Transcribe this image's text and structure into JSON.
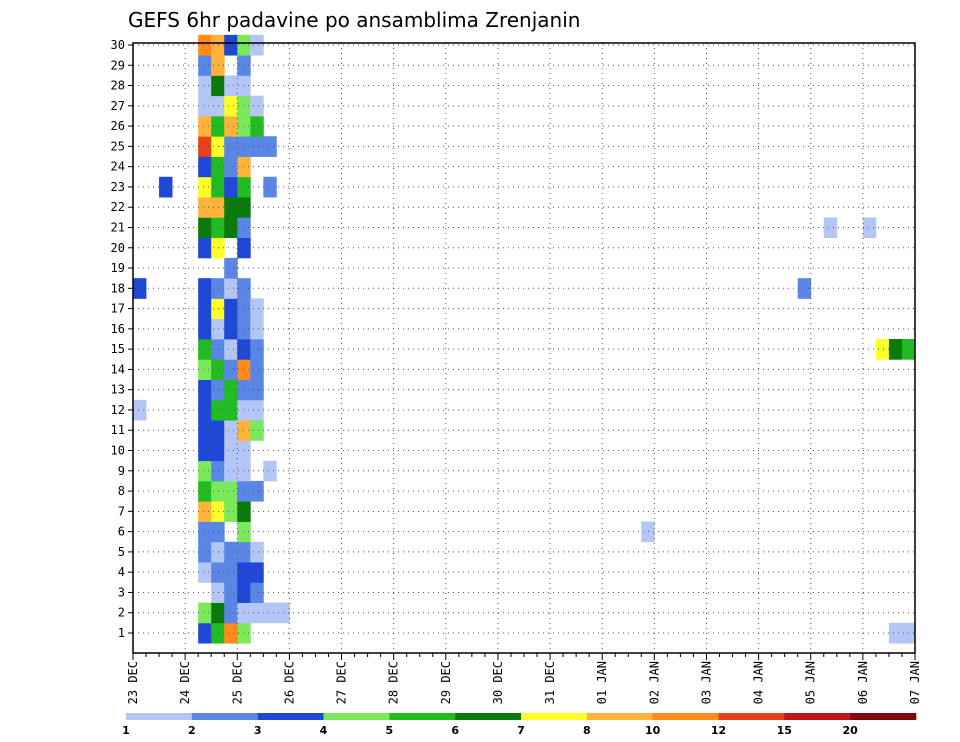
{
  "chart_data": {
    "type": "heatmap",
    "title": "GEFS 6hr padavine po ansamblima Zrenjanin",
    "xlabel": "",
    "ylabel": "",
    "x_start": "23 DEC 00Z",
    "x_step_hours": 6,
    "x_tick_labels": [
      "23 DEC",
      "24 DEC",
      "25 DEC",
      "26 DEC",
      "27 DEC",
      "28 DEC",
      "29 DEC",
      "30 DEC",
      "31 DEC",
      "01 JAN",
      "02 JAN",
      "03 JAN",
      "04 JAN",
      "05 JAN",
      "06 JAN",
      "07 JAN"
    ],
    "y_tick_labels": [
      "1",
      "2",
      "3",
      "4",
      "5",
      "6",
      "7",
      "8",
      "9",
      "10",
      "11",
      "12",
      "13",
      "14",
      "15",
      "16",
      "17",
      "18",
      "19",
      "20",
      "21",
      "22",
      "23",
      "24",
      "25",
      "26",
      "27",
      "28",
      "29",
      "30"
    ],
    "ylim": [
      1,
      30
    ],
    "grid": true,
    "colorbar": {
      "labels": [
        "1",
        "2",
        "3",
        "4",
        "5",
        "6",
        "7",
        "8",
        "10",
        "12",
        "15",
        "20"
      ],
      "colors": [
        "#b3c6f5",
        "#5a87e6",
        "#1f48d6",
        "#7ae85a",
        "#22bb22",
        "#0a7a0a",
        "#ffff2a",
        "#ffb33a",
        "#ff8c1a",
        "#e8401a",
        "#c01818",
        "#800a0a"
      ]
    },
    "series": [
      {
        "member": 1,
        "cells": [
          [
            5,
            3
          ],
          [
            6,
            5
          ],
          [
            7,
            9
          ],
          [
            8,
            4
          ],
          [
            58,
            1
          ],
          [
            59,
            1
          ],
          [
            67,
            1
          ],
          [
            68,
            3
          ]
        ]
      },
      {
        "member": 2,
        "cells": [
          [
            5,
            4
          ],
          [
            6,
            6
          ],
          [
            7,
            2
          ],
          [
            8,
            1
          ],
          [
            9,
            1
          ],
          [
            10,
            1
          ],
          [
            11,
            1
          ],
          [
            70,
            4
          ],
          [
            71,
            3
          ]
        ]
      },
      {
        "member": 3,
        "cells": [
          [
            6,
            1
          ],
          [
            7,
            2
          ],
          [
            8,
            3
          ],
          [
            9,
            2
          ]
        ]
      },
      {
        "member": 4,
        "cells": [
          [
            5,
            1
          ],
          [
            6,
            2
          ],
          [
            7,
            2
          ],
          [
            8,
            3
          ],
          [
            9,
            3
          ],
          [
            76,
            1
          ],
          [
            77,
            3
          ],
          [
            78,
            2
          ],
          [
            79,
            6
          ]
        ]
      },
      {
        "member": 5,
        "cells": [
          [
            5,
            2
          ],
          [
            6,
            1
          ],
          [
            7,
            2
          ],
          [
            8,
            2
          ],
          [
            9,
            1
          ],
          [
            81,
            1
          ]
        ]
      },
      {
        "member": 6,
        "cells": [
          [
            5,
            2
          ],
          [
            6,
            2
          ],
          [
            8,
            4
          ],
          [
            39,
            1
          ],
          [
            78,
            6
          ]
        ]
      },
      {
        "member": 7,
        "cells": [
          [
            5,
            8
          ],
          [
            6,
            7
          ],
          [
            7,
            4
          ],
          [
            8,
            6
          ],
          [
            67,
            1
          ],
          [
            68,
            4
          ]
        ]
      },
      {
        "member": 8,
        "cells": [
          [
            5,
            5
          ],
          [
            6,
            4
          ],
          [
            7,
            4
          ],
          [
            8,
            2
          ],
          [
            9,
            2
          ]
        ]
      },
      {
        "member": 9,
        "cells": [
          [
            5,
            4
          ],
          [
            6,
            2
          ],
          [
            7,
            1
          ],
          [
            8,
            1
          ],
          [
            10,
            1
          ]
        ]
      },
      {
        "member": 10,
        "cells": [
          [
            5,
            3
          ],
          [
            6,
            3
          ],
          [
            7,
            1
          ],
          [
            8,
            1
          ],
          [
            66,
            1
          ],
          [
            67,
            5
          ],
          [
            61,
            1
          ],
          [
            62,
            3
          ],
          [
            78,
            1
          ],
          [
            79,
            5
          ]
        ]
      },
      {
        "member": 11,
        "cells": [
          [
            5,
            3
          ],
          [
            6,
            3
          ],
          [
            7,
            1
          ],
          [
            8,
            8
          ],
          [
            9,
            4
          ],
          [
            79,
            1
          ],
          [
            80,
            5
          ],
          [
            81,
            4
          ],
          [
            82,
            1
          ]
        ]
      },
      {
        "member": 12,
        "cells": [
          [
            0,
            1
          ],
          [
            5,
            3
          ],
          [
            6,
            5
          ],
          [
            7,
            5
          ],
          [
            8,
            1
          ],
          [
            9,
            1
          ],
          [
            66,
            1
          ],
          [
            75,
            2
          ],
          [
            76,
            1
          ]
        ]
      },
      {
        "member": 13,
        "cells": [
          [
            5,
            3
          ],
          [
            6,
            2
          ],
          [
            7,
            5
          ],
          [
            8,
            2
          ],
          [
            9,
            2
          ],
          [
            66,
            5
          ]
        ]
      },
      {
        "member": 14,
        "cells": [
          [
            5,
            4
          ],
          [
            6,
            5
          ],
          [
            7,
            2
          ],
          [
            8,
            9
          ],
          [
            9,
            2
          ]
        ]
      },
      {
        "member": 15,
        "cells": [
          [
            5,
            5
          ],
          [
            6,
            2
          ],
          [
            7,
            1
          ],
          [
            8,
            3
          ],
          [
            9,
            2
          ],
          [
            57,
            7
          ],
          [
            58,
            6
          ],
          [
            59,
            5
          ],
          [
            74,
            2
          ],
          [
            77,
            4
          ],
          [
            78,
            2
          ]
        ]
      },
      {
        "member": 16,
        "cells": [
          [
            5,
            3
          ],
          [
            6,
            1
          ],
          [
            7,
            3
          ],
          [
            8,
            2
          ],
          [
            9,
            1
          ],
          [
            65,
            3
          ]
        ]
      },
      {
        "member": 17,
        "cells": [
          [
            5,
            3
          ],
          [
            6,
            7
          ],
          [
            7,
            3
          ],
          [
            8,
            2
          ],
          [
            9,
            1
          ]
        ]
      },
      {
        "member": 18,
        "cells": [
          [
            0,
            3
          ],
          [
            5,
            3
          ],
          [
            6,
            2
          ],
          [
            7,
            1
          ],
          [
            8,
            2
          ],
          [
            51,
            2
          ],
          [
            75,
            1
          ]
        ]
      },
      {
        "member": 19,
        "cells": [
          [
            7,
            2
          ]
        ]
      },
      {
        "member": 20,
        "cells": [
          [
            5,
            3
          ],
          [
            6,
            7
          ],
          [
            8,
            3
          ],
          [
            72,
            1
          ],
          [
            80,
            3
          ],
          [
            81,
            1
          ]
        ]
      },
      {
        "member": 21,
        "cells": [
          [
            5,
            6
          ],
          [
            6,
            5
          ],
          [
            7,
            6
          ],
          [
            8,
            2
          ],
          [
            53,
            1
          ],
          [
            56,
            1
          ],
          [
            69,
            4
          ]
        ]
      },
      {
        "member": 22,
        "cells": [
          [
            5,
            8
          ],
          [
            6,
            8
          ],
          [
            7,
            6
          ],
          [
            8,
            6
          ],
          [
            60,
            3
          ],
          [
            61,
            1
          ],
          [
            69,
            1
          ],
          [
            72,
            2
          ]
        ]
      },
      {
        "member": 23,
        "cells": [
          [
            2,
            3
          ],
          [
            5,
            7
          ],
          [
            6,
            5
          ],
          [
            7,
            3
          ],
          [
            8,
            5
          ],
          [
            10,
            2
          ]
        ]
      },
      {
        "member": 24,
        "cells": [
          [
            5,
            3
          ],
          [
            6,
            5
          ],
          [
            7,
            2
          ],
          [
            8,
            8
          ],
          [
            69,
            1
          ],
          [
            72,
            1
          ],
          [
            74,
            2
          ],
          [
            75,
            1
          ],
          [
            76,
            1
          ]
        ]
      },
      {
        "member": 25,
        "cells": [
          [
            5,
            10
          ],
          [
            6,
            7
          ],
          [
            7,
            2
          ],
          [
            8,
            2
          ],
          [
            9,
            2
          ],
          [
            10,
            2
          ],
          [
            68,
            8
          ],
          [
            69,
            3
          ]
        ]
      },
      {
        "member": 26,
        "cells": [
          [
            5,
            8
          ],
          [
            6,
            5
          ],
          [
            7,
            8
          ],
          [
            8,
            4
          ],
          [
            9,
            5
          ]
        ]
      },
      {
        "member": 27,
        "cells": [
          [
            5,
            1
          ],
          [
            6,
            1
          ],
          [
            7,
            7
          ],
          [
            8,
            4
          ],
          [
            9,
            1
          ],
          [
            68,
            1
          ],
          [
            73,
            2
          ],
          [
            75,
            1
          ],
          [
            76,
            1
          ]
        ]
      },
      {
        "member": 28,
        "cells": [
          [
            5,
            1
          ],
          [
            6,
            6
          ],
          [
            7,
            1
          ],
          [
            8,
            1
          ],
          [
            65,
            2
          ],
          [
            66,
            1
          ]
        ]
      },
      {
        "member": 29,
        "cells": [
          [
            5,
            2
          ],
          [
            6,
            8
          ],
          [
            8,
            2
          ],
          [
            69,
            1
          ]
        ]
      },
      {
        "member": 30,
        "cells": [
          [
            5,
            9
          ],
          [
            6,
            8
          ],
          [
            7,
            3
          ],
          [
            8,
            4
          ],
          [
            9,
            1
          ],
          [
            77,
            2
          ],
          [
            80,
            2
          ],
          [
            82,
            1
          ]
        ]
      }
    ]
  }
}
